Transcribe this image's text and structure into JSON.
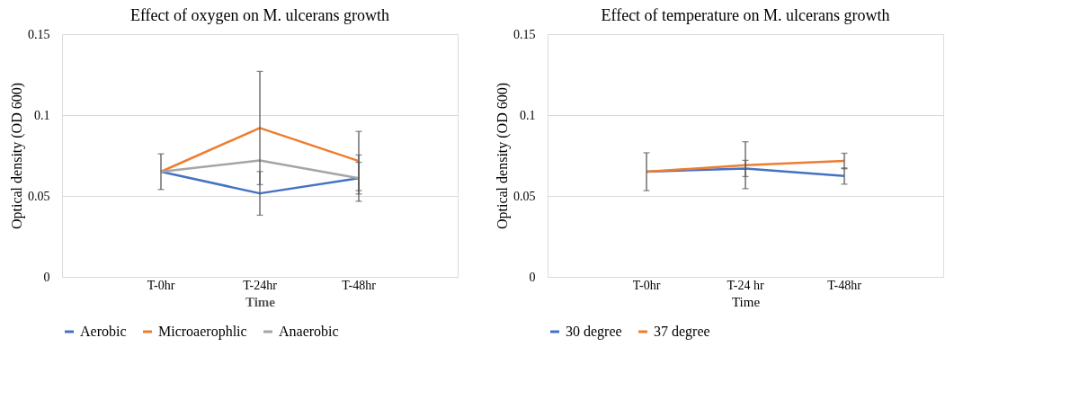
{
  "chart_data": [
    {
      "type": "line",
      "title": "Effect of oxygen on M. ulcerans growth",
      "xlabel": "Time",
      "ylabel": "Optical density (OD 600)",
      "categories": [
        "T-0hr",
        "T-24hr",
        "T-48hr"
      ],
      "series": [
        {
          "name": "Aerobic",
          "color": "#4472c4",
          "values": [
            0.065,
            0.0516,
            0.061
          ],
          "errors": [
            0.011,
            0.0135,
            0.0143
          ]
        },
        {
          "name": "Microaerophlic",
          "color": "#ed7d31",
          "values": [
            0.065,
            0.092,
            0.0716
          ],
          "errors": [
            null,
            0.035,
            0.0183
          ]
        },
        {
          "name": "Anaerobic",
          "color": "#a5a5a5",
          "values": [
            0.065,
            0.072,
            0.061
          ],
          "errors": [
            null,
            null,
            0.0098
          ]
        }
      ],
      "ylim": [
        0,
        0.15
      ],
      "yticks": [
        0,
        0.05,
        0.1,
        0.15
      ],
      "grid": "y",
      "legend": "bottom",
      "marker": "none",
      "line_style": "solid"
    },
    {
      "type": "line",
      "title": "Effect of temperature on M. ulcerans growth",
      "xlabel": "Time",
      "ylabel": "Optical density (OD 600)",
      "categories": [
        "T-0hr",
        "T-24 hr",
        "T-48hr"
      ],
      "series": [
        {
          "name": "30 degree",
          "color": "#4472c4",
          "values": [
            0.065,
            0.067,
            0.0623
          ],
          "errors": [
            0.0117,
            0.005,
            0.005
          ]
        },
        {
          "name": "37 degree",
          "color": "#ed7d31",
          "values": [
            0.065,
            0.069,
            0.0716
          ],
          "errors": [
            null,
            0.0145,
            0.0048
          ]
        }
      ],
      "ylim": [
        0,
        0.15
      ],
      "yticks": [
        0,
        0.05,
        0.1,
        0.15
      ],
      "grid": "y",
      "legend": "bottom",
      "marker": "none",
      "line_style": "solid"
    }
  ]
}
